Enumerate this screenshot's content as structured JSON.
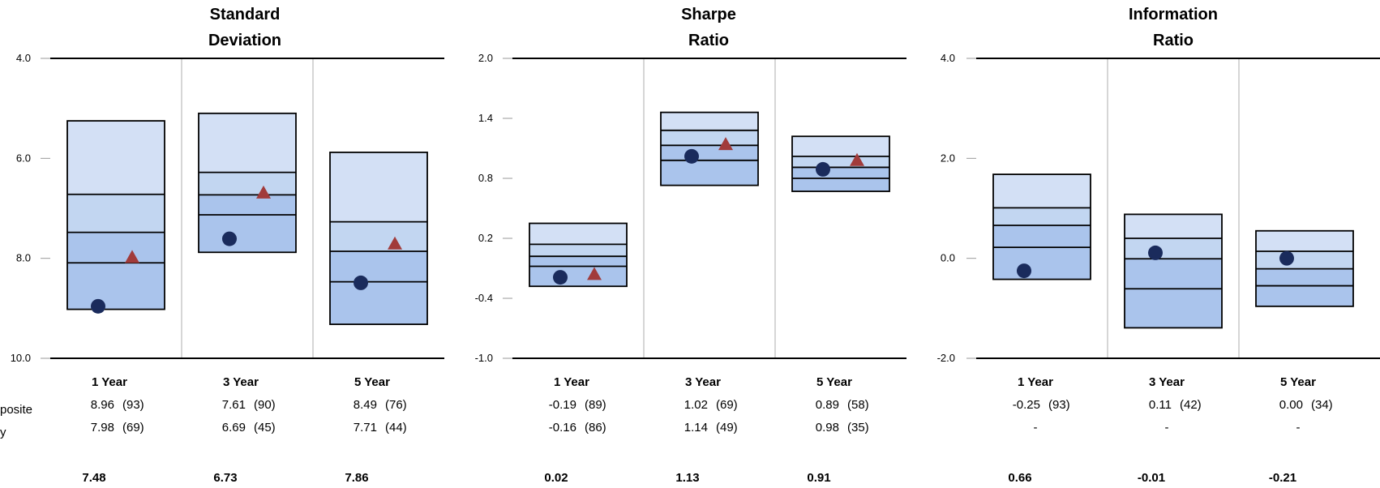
{
  "colors": {
    "band_light": "#d3e0f5",
    "band_mid": "#c2d6f1",
    "band_dark": "#aac4ec",
    "composite_marker": "#1a2b5c",
    "benchmark_marker": "#a13b3b",
    "grid": "#c8c8c8",
    "axis": "#000000"
  },
  "row_labels": [
    "posite",
    "y"
  ],
  "periods": [
    "1 Year",
    "3 Year",
    "5 Year"
  ],
  "chart_data": [
    {
      "type": "floating_bar",
      "title_lines": [
        "Standard",
        "Deviation"
      ],
      "yaxis": {
        "min": 4.0,
        "max": 10.0,
        "inverted": true,
        "ticks": [
          4.0,
          6.0,
          8.0,
          10.0
        ],
        "tick_labels": [
          "4.0",
          "6.0",
          "8.0",
          "10.0"
        ]
      },
      "groups": [
        {
          "label": "1 Year",
          "percentiles": [
            5.25,
            6.72,
            7.48,
            8.09,
            9.02
          ],
          "composite": 8.96,
          "benchmark": 7.98
        },
        {
          "label": "3 Year",
          "percentiles": [
            5.1,
            6.28,
            6.73,
            7.13,
            7.88
          ],
          "composite": 7.61,
          "benchmark": 6.69
        },
        {
          "label": "5 Year",
          "percentiles": [
            5.88,
            7.27,
            7.86,
            8.47,
            9.32
          ],
          "composite": 8.49,
          "benchmark": 7.71
        }
      ],
      "table": {
        "rows": [
          [
            "8.96",
            "(93)",
            "7.61",
            "(90)",
            "8.49",
            "(76)"
          ],
          [
            "7.98",
            "(69)",
            "6.69",
            "(45)",
            "7.71",
            "(44)"
          ]
        ],
        "median": [
          "7.48",
          "6.73",
          "7.86"
        ]
      }
    },
    {
      "type": "floating_bar",
      "title_lines": [
        "Sharpe",
        "Ratio"
      ],
      "yaxis": {
        "min": -1.0,
        "max": 2.0,
        "inverted": false,
        "ticks": [
          2.0,
          1.4,
          0.8,
          0.2,
          -0.4,
          -1.0
        ],
        "tick_labels": [
          "2.0",
          "1.4",
          "0.8",
          "0.2",
          "-0.4",
          "-1.0"
        ]
      },
      "groups": [
        {
          "label": "1 Year",
          "percentiles": [
            0.35,
            0.14,
            0.02,
            -0.08,
            -0.28
          ],
          "composite": -0.19,
          "benchmark": -0.16
        },
        {
          "label": "3 Year",
          "percentiles": [
            1.46,
            1.28,
            1.13,
            0.98,
            0.73
          ],
          "composite": 1.02,
          "benchmark": 1.14
        },
        {
          "label": "5 Year",
          "percentiles": [
            1.22,
            1.02,
            0.91,
            0.8,
            0.67
          ],
          "composite": 0.89,
          "benchmark": 0.98
        }
      ],
      "table": {
        "rows": [
          [
            "-0.19",
            "(89)",
            "1.02",
            "(69)",
            "0.89",
            "(58)"
          ],
          [
            "-0.16",
            "(86)",
            "1.14",
            "(49)",
            "0.98",
            "(35)"
          ]
        ],
        "median": [
          "0.02",
          "1.13",
          "0.91"
        ]
      }
    },
    {
      "type": "floating_bar",
      "title_lines": [
        "Information",
        "Ratio"
      ],
      "yaxis": {
        "min": -2.0,
        "max": 4.0,
        "inverted": false,
        "ticks": [
          4.0,
          2.0,
          0.0,
          -2.0
        ],
        "tick_labels": [
          "4.0",
          "2.0",
          "0.0",
          "-2.0"
        ]
      },
      "groups": [
        {
          "label": "1 Year",
          "percentiles": [
            1.68,
            1.01,
            0.66,
            0.22,
            -0.42
          ],
          "composite": -0.25,
          "benchmark": null
        },
        {
          "label": "3 Year",
          "percentiles": [
            0.88,
            0.4,
            -0.01,
            -0.61,
            -1.39
          ],
          "composite": 0.11,
          "benchmark": null
        },
        {
          "label": "5 Year",
          "percentiles": [
            0.55,
            0.14,
            -0.21,
            -0.55,
            -0.96
          ],
          "composite": 0.0,
          "benchmark": null
        }
      ],
      "table": {
        "rows": [
          [
            "-0.25",
            "(93)",
            "0.11",
            "(42)",
            "0.00",
            "(34)"
          ],
          [
            "-",
            "",
            "-",
            "",
            "-",
            ""
          ]
        ],
        "median": [
          "0.66",
          "-0.01",
          "-0.21"
        ]
      }
    }
  ]
}
